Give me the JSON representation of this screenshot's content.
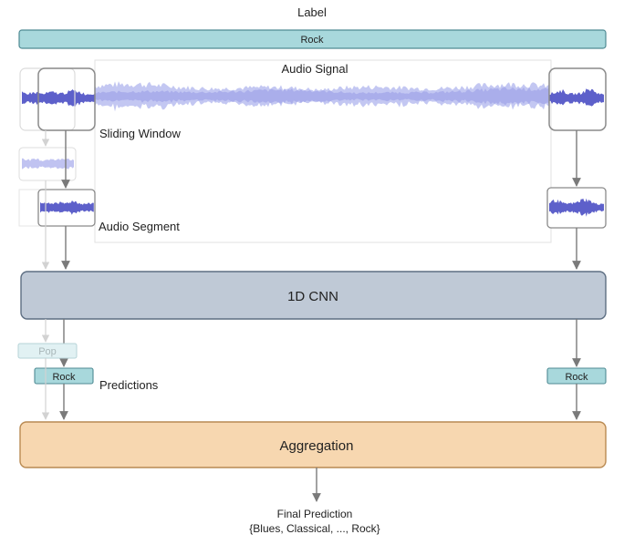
{
  "diagram": {
    "label_title": "Label",
    "label_value": "Rock",
    "audio_signal_label": "Audio Signal",
    "sliding_window_label": "Sliding Window",
    "audio_segment_label": "Audio Segment",
    "cnn_label": "1D CNN",
    "prediction_faded": "Pop",
    "prediction_left": "Rock",
    "prediction_right": "Rock",
    "predictions_label": "Predictions",
    "aggregation_label": "Aggregation",
    "final_prediction_title": "Final Prediction",
    "final_prediction_classes": "{Blues, Classical, ..., Rock}"
  },
  "colors": {
    "label_bar_fill": "#a8d8dc",
    "label_bar_stroke": "#4f8a93",
    "wave_dark": "#4b4fc4",
    "wave_light": "#b9bdf0",
    "cnn_fill": "#bfc9d6",
    "cnn_stroke": "#5d6e82",
    "aggregation_fill": "#f7d7b0",
    "aggregation_stroke": "#b98a52",
    "arrow": "#7a7a7a",
    "arrow_faded": "#cfcfcf"
  }
}
